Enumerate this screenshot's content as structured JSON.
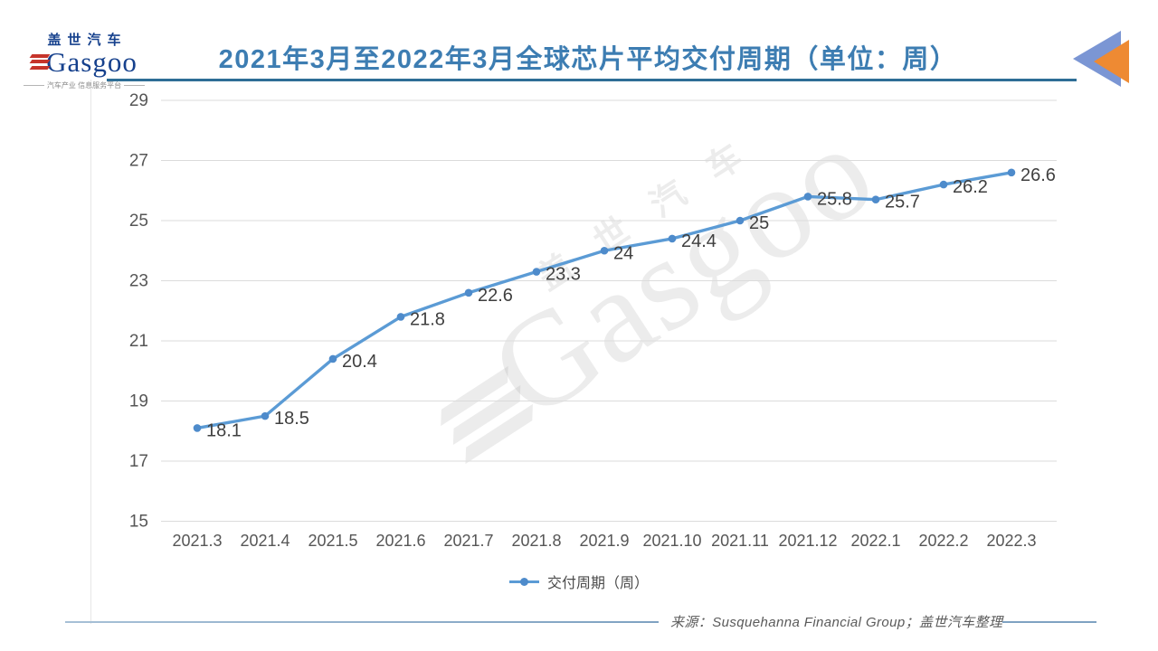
{
  "header": {
    "logo": {
      "cn": "盖世汽车",
      "en": "Gasgoo",
      "tagline": "汽车产业 信息服务平台"
    },
    "title": "2021年3月至2022年3月全球芯片平均交付周期（单位：周）"
  },
  "chart_data": {
    "type": "line",
    "title": "2021年3月至2022年3月全球芯片平均交付周期（单位：周）",
    "categories": [
      "2021.3",
      "2021.4",
      "2021.5",
      "2021.6",
      "2021.7",
      "2021.8",
      "2021.9",
      "2021.10",
      "2021.11",
      "2021.12",
      "2022.1",
      "2022.2",
      "2022.3"
    ],
    "series": [
      {
        "name": "交付周期（周）",
        "values": [
          18.1,
          18.5,
          20.4,
          21.8,
          22.6,
          23.3,
          24,
          24.4,
          25,
          25.8,
          25.7,
          26.2,
          26.6
        ]
      }
    ],
    "xlabel": "",
    "ylabel": "",
    "ylim": [
      15,
      29
    ],
    "y_ticks": [
      15,
      17,
      19,
      21,
      23,
      25,
      27,
      29
    ],
    "grid": true,
    "legend_position": "bottom",
    "line_color": "#5b9bd5",
    "marker_color": "#4e8bcb",
    "label_color": "#3f3f3f",
    "axis_text_color": "#565656",
    "gridline_color": "#dbdbdb"
  },
  "legend": {
    "label": "交付周期（周）"
  },
  "watermark": {
    "cn": "盖世汽车",
    "en": "Gasgoo"
  },
  "footer": {
    "source": "来源：Susquehanna Financial Group；盖世汽车整理"
  },
  "colors": {
    "title": "#3d7db2",
    "title_rule": "#2e6e96",
    "logo_blue": "#16418d",
    "logo_red": "#c6342b",
    "corner_triangle_blue": "#7b96d4",
    "corner_triangle_orange": "#ee8a33",
    "footer_rule": "#7fa2c2"
  }
}
